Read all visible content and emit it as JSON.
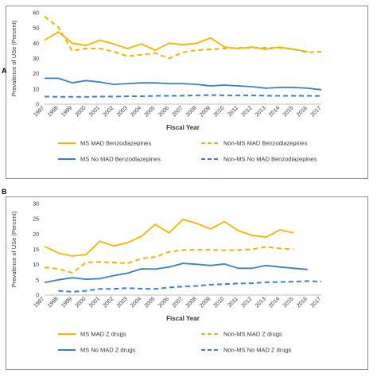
{
  "panels": [
    {
      "letter": "A",
      "ylabel": "Prevalence of USe (Percent)",
      "xlabel": "Fiscal Year",
      "legend": [
        "MS MAD Benzodiazepines",
        "Non-MS MAD Benzodiazepines",
        "MS No MAD Benzodiazepines",
        "Non-MS No MAD Benzodiazepines"
      ]
    },
    {
      "letter": "B",
      "ylabel": "Prevalence of USe (Percent)",
      "xlabel": "Fiscal Year",
      "legend": [
        "MS MAD Z drugs",
        "Non-MS MAD Z drugs",
        "MS No MAD Z drugs",
        "Non-MS No MAD Z drugs"
      ]
    }
  ],
  "colors": {
    "ms": "#f2b600",
    "nonms_orange": "#f2b600",
    "blue": "#3a80c6",
    "axis": "#bfbfbf"
  },
  "chart_data": [
    {
      "type": "line",
      "x": [
        "1997",
        "1998",
        "1999",
        "2000",
        "2001",
        "2002",
        "2003",
        "2004",
        "2005",
        "2006",
        "2007",
        "2008",
        "2009",
        "2010",
        "2011",
        "2012",
        "2013",
        "2014",
        "2015",
        "2016",
        "2017"
      ],
      "xlabel": "Fiscal Year",
      "ylabel": "Prevalence of USe (Percent)",
      "ylim": [
        0,
        60
      ],
      "yticks": [
        0,
        10,
        20,
        30,
        40,
        50,
        60
      ],
      "grid": false,
      "legend_position": "bottom",
      "series": [
        {
          "name": "MS MAD Benzodiazepines",
          "style": "solid",
          "color": "#f2b600",
          "values": [
            42,
            47.5,
            40,
            38.5,
            42,
            39.5,
            36.5,
            39.5,
            35.5,
            40,
            39,
            40,
            43.5,
            37.5,
            36.5,
            37.5,
            36,
            37.5,
            36,
            34.5,
            null
          ]
        },
        {
          "name": "Non-MS MAD Benzodiazepines",
          "style": "dashed",
          "color": "#f2b600",
          "values": [
            57.5,
            50.5,
            35,
            36.5,
            36.5,
            34.5,
            31.5,
            32.5,
            33.5,
            30,
            34,
            35.5,
            36,
            36.5,
            37,
            37,
            37,
            37,
            36,
            34,
            34.5
          ]
        },
        {
          "name": "MS No MAD Benzodiazepines",
          "style": "solid",
          "color": "#3a80c6",
          "values": [
            17,
            17,
            14,
            15.5,
            14.5,
            13,
            13.5,
            14,
            14,
            13.5,
            13.5,
            13,
            12,
            12.5,
            12,
            11.5,
            10.5,
            11,
            11,
            10.5,
            9.5
          ]
        },
        {
          "name": "Non-MS No MAD Benzodiazepines",
          "style": "dashed",
          "color": "#3a80c6",
          "values": [
            5,
            4.8,
            4.8,
            4.8,
            5,
            5,
            5.2,
            5.2,
            5.5,
            5.5,
            5.6,
            5.8,
            6,
            5.8,
            5.8,
            5.8,
            5.6,
            5.5,
            5.5,
            5.5,
            5.4
          ]
        }
      ]
    },
    {
      "type": "line",
      "x": [
        "1997",
        "1998",
        "1999",
        "2000",
        "2001",
        "2002",
        "2003",
        "2004",
        "2005",
        "2006",
        "2007",
        "2008",
        "2009",
        "2010",
        "2011",
        "2012",
        "2013",
        "2014",
        "2015",
        "2016",
        "2017"
      ],
      "xlabel": "Fiscal Year",
      "ylabel": "Prevalence of USe (Percent)",
      "ylim": [
        0,
        30
      ],
      "yticks": [
        0,
        5,
        10,
        15,
        20,
        25,
        30
      ],
      "grid": false,
      "legend_position": "bottom",
      "series": [
        {
          "name": "MS MAD Z drugs",
          "style": "solid",
          "color": "#f2b600",
          "values": [
            16,
            13.8,
            12.8,
            13.3,
            17.7,
            16.1,
            17.2,
            19.3,
            23.2,
            20.4,
            24.8,
            23.5,
            21.7,
            24.1,
            21.1,
            19.6,
            19,
            21.4,
            20.4,
            null,
            null
          ]
        },
        {
          "name": "Non-MS MAD Z drugs",
          "style": "dashed",
          "color": "#f2b600",
          "values": [
            9.1,
            8.6,
            7.3,
            10.7,
            10.9,
            10.7,
            10.4,
            12,
            12.5,
            14.2,
            14.8,
            14.9,
            14.9,
            14.7,
            14.8,
            15,
            15.8,
            15.3,
            15,
            null,
            null
          ]
        },
        {
          "name": "MS No MAD Z drugs",
          "style": "solid",
          "color": "#3a80c6",
          "values": [
            4.1,
            5,
            5.7,
            5.2,
            5.4,
            6.4,
            7.2,
            8.6,
            8.5,
            9.2,
            10.4,
            10.1,
            9.7,
            10.2,
            8.8,
            8.8,
            9.7,
            9.2,
            8.8,
            8.4,
            null
          ]
        },
        {
          "name": "Non-MS No MAD Z drugs",
          "style": "dashed",
          "color": "#3a80c6",
          "values": [
            null,
            1.4,
            1.1,
            1.4,
            2,
            2,
            2.3,
            2.1,
            2,
            2.5,
            2.8,
            3,
            3.4,
            3.6,
            3.8,
            3.9,
            4.2,
            4.3,
            4.4,
            4.6,
            4.4
          ]
        }
      ]
    }
  ]
}
